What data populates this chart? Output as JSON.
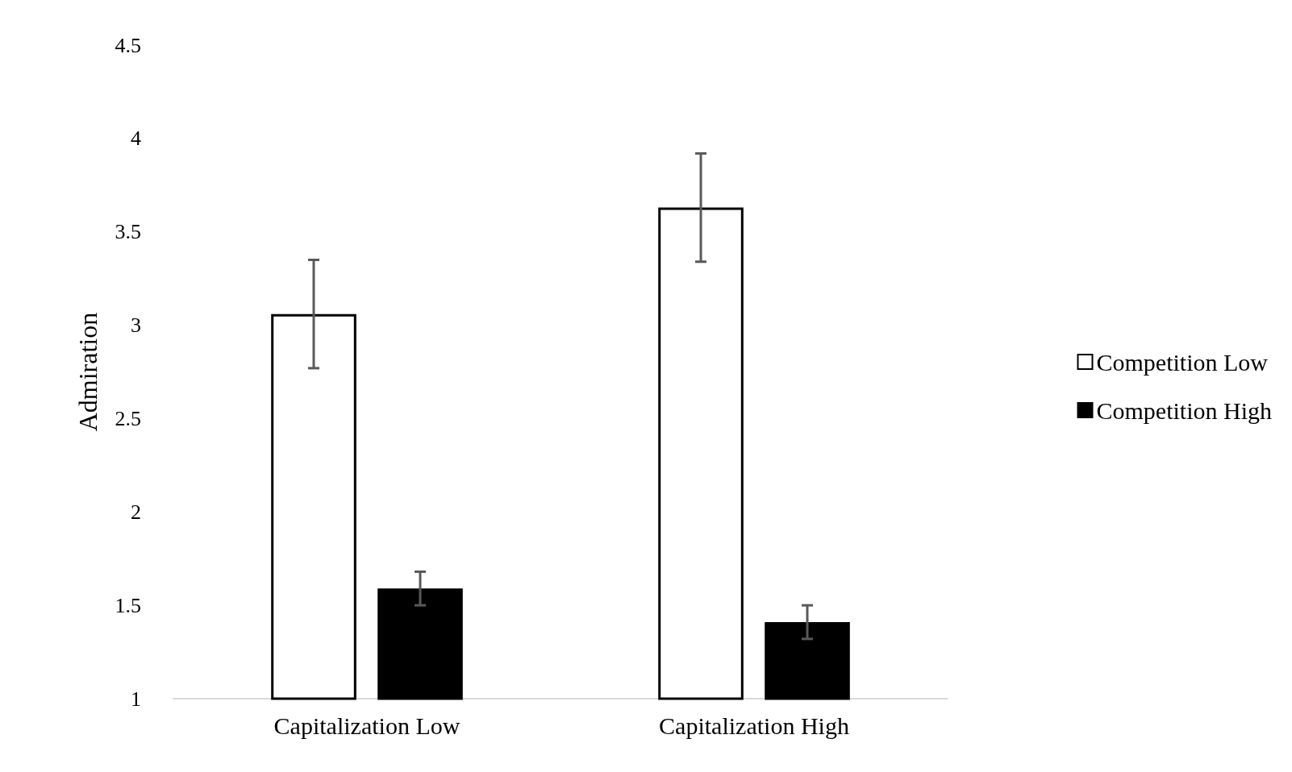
{
  "chart_data": {
    "type": "bar",
    "ylabel": "Admiration",
    "categories": [
      "Capitalization Low",
      "Capitalization High"
    ],
    "series": [
      {
        "name": "Competition Low",
        "color": "#ffffff",
        "values": [
          3.06,
          3.63
        ],
        "errors": [
          0.29,
          0.29
        ]
      },
      {
        "name": "Competition High",
        "color": "#000000",
        "values": [
          1.59,
          1.41
        ],
        "errors": [
          0.09,
          0.09
        ]
      }
    ],
    "ylim": [
      1,
      4.5
    ],
    "yticks": [
      1,
      1.5,
      2,
      2.5,
      3,
      3.5,
      4,
      4.5
    ],
    "grid": false,
    "legend": "right"
  }
}
